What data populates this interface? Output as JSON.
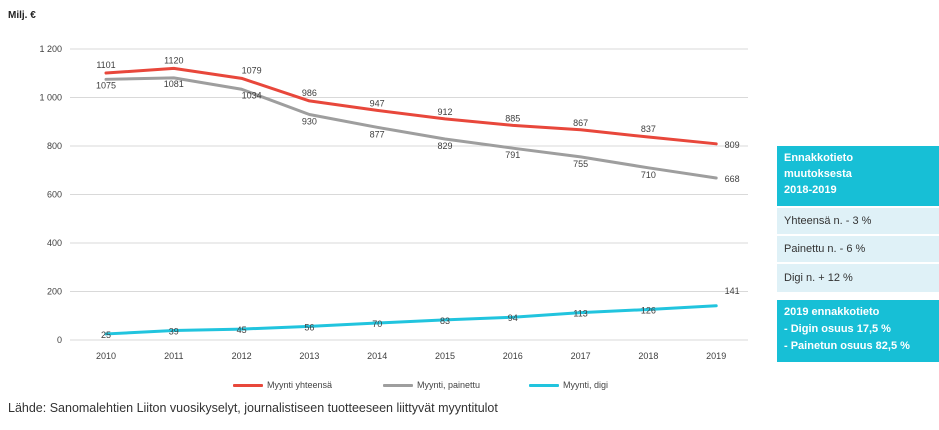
{
  "chart_data": {
    "type": "line",
    "ylabel": "Milj. €",
    "ylim": [
      0,
      1200
    ],
    "yticks": [
      "0",
      "200",
      "400",
      "600",
      "800",
      "1 000",
      "1 200"
    ],
    "ytick_values": [
      0,
      200,
      400,
      600,
      800,
      1000,
      1200
    ],
    "categories": [
      "2010",
      "2011",
      "2012",
      "2013",
      "2014",
      "2015",
      "2016",
      "2017",
      "2018",
      "2019"
    ],
    "grid": true,
    "legend_position": "bottom",
    "series": [
      {
        "name": "Myynti yhteensä",
        "color": "#e8473b",
        "values": [
          1101,
          1120,
          1079,
          986,
          947,
          912,
          885,
          867,
          837,
          809
        ]
      },
      {
        "name": "Myynti, painettu",
        "color": "#9e9e9e",
        "values": [
          1075,
          1081,
          1034,
          930,
          877,
          829,
          791,
          755,
          710,
          668
        ]
      },
      {
        "name": "Myynti, digi",
        "color": "#21c4de",
        "values": [
          25,
          39,
          45,
          56,
          70,
          83,
          94,
          113,
          126,
          141
        ]
      }
    ]
  },
  "sidebar": {
    "header": [
      "Ennakkotieto",
      "muutoksesta",
      "2018-2019"
    ],
    "rows": [
      "Yhteensä n.  - 3 %",
      "Painettu n. - 6 %",
      "Digi  n. + 12 %"
    ],
    "footer_box": [
      "2019 ennakkotieto",
      "- Digin osuus 17,5 %",
      "- Painetun osuus 82,5 %"
    ]
  },
  "source": "Lähde: Sanomalehtien Liiton vuosikyselyt, journalistiseen tuotteeseen liittyvät myyntitulot",
  "colors": {
    "teal_box": "#17bfd6",
    "light_box": "#dff1f7"
  }
}
